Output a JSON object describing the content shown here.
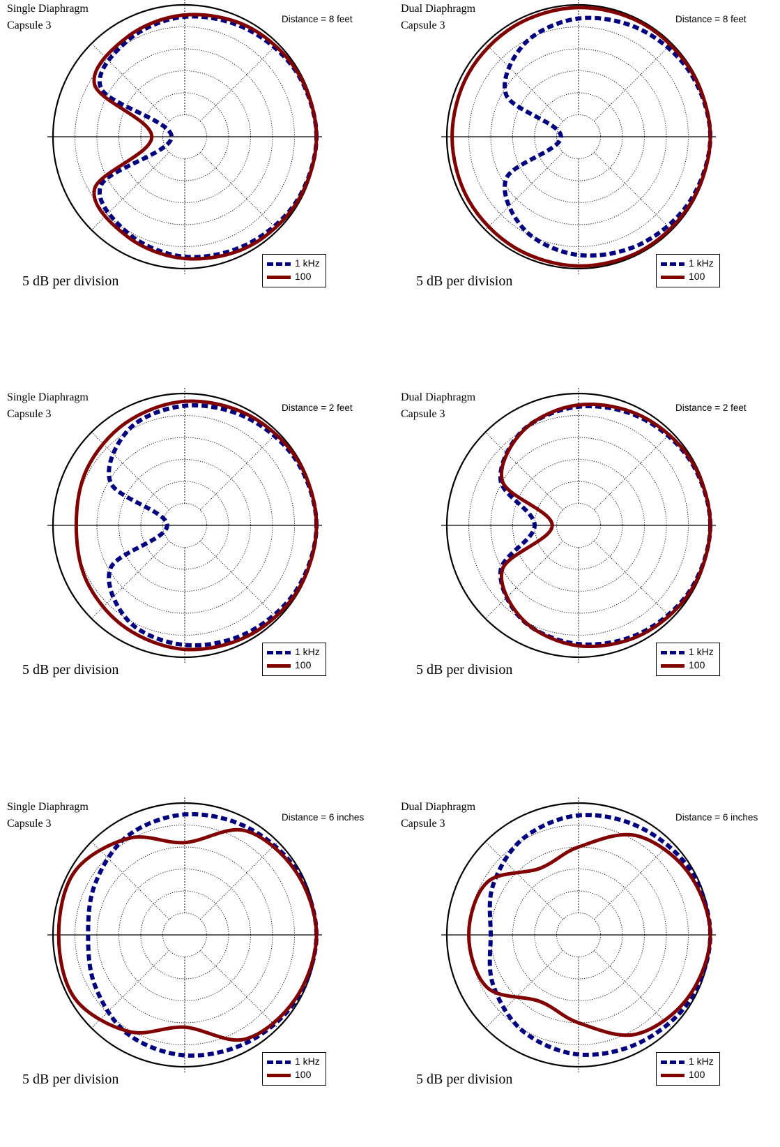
{
  "figure": {
    "scale_note": "5 dB per division",
    "legend": [
      "1 kHz",
      "100"
    ],
    "colors": {
      "1 kHz": "#00007f",
      "100": "#800000"
    }
  },
  "chart_data": [
    {
      "type": "polar",
      "title": [
        "Single Diaphragm",
        "Capsule 3"
      ],
      "annotation": "Distance = 8 feet",
      "grid": true,
      "legend_position": "bottom-right",
      "r_axis": {
        "divisions": 6,
        "units": "dB",
        "db_per_division": 5
      },
      "angle_deg": [
        0,
        30,
        60,
        90,
        120,
        150,
        180,
        210,
        240,
        270,
        300,
        330
      ],
      "series": [
        {
          "name": "1 kHz",
          "style": "dashed",
          "values": [
            0,
            -0.6,
            -1.7,
            -2.7,
            -4.5,
            -8,
            -27,
            -8,
            -4.5,
            -2.7,
            -1.7,
            -0.6
          ]
        },
        {
          "name": "100",
          "style": "solid",
          "values": [
            0,
            -0.4,
            -1.1,
            -2.3,
            -3.8,
            -6.3,
            -22.5,
            -6.3,
            -3.8,
            -2.3,
            -1.1,
            -0.4
          ]
        }
      ]
    },
    {
      "type": "polar",
      "title": [
        "Dual Diaphragm",
        "Capsule 3"
      ],
      "annotation": "Distance = 8 feet",
      "grid": true,
      "legend_position": "bottom-right",
      "r_axis": {
        "divisions": 6,
        "units": "dB",
        "db_per_division": 5
      },
      "angle_deg": [
        0,
        30,
        60,
        90,
        120,
        150,
        180,
        210,
        240,
        270,
        300,
        330
      ],
      "series": [
        {
          "name": "1 kHz",
          "style": "dashed",
          "values": [
            0,
            -0.7,
            -1.8,
            -3.1,
            -5.5,
            -11,
            -26,
            -11,
            -5.5,
            -3.1,
            -1.8,
            -0.7
          ]
        },
        {
          "name": "100",
          "style": "solid",
          "values": [
            0,
            -0.3,
            -0.4,
            -0.6,
            -0.9,
            -1.1,
            -1.2,
            -1.1,
            -0.9,
            -0.6,
            -0.4,
            -0.3
          ]
        }
      ]
    },
    {
      "type": "polar",
      "title": [
        "Single Diaphragm",
        "Capsule 3"
      ],
      "annotation": "Distance = 2 feet",
      "grid": true,
      "legend_position": "bottom-right",
      "r_axis": {
        "divisions": 6,
        "units": "dB",
        "db_per_division": 5
      },
      "angle_deg": [
        0,
        30,
        60,
        90,
        120,
        150,
        180,
        210,
        240,
        270,
        300,
        330
      ],
      "series": [
        {
          "name": "1 kHz",
          "style": "dashed",
          "values": [
            0,
            -0.6,
            -1.7,
            -2.8,
            -4.7,
            -10.5,
            -26,
            -10.5,
            -4.7,
            -2.8,
            -1.7,
            -0.6
          ]
        },
        {
          "name": "100",
          "style": "solid",
          "values": [
            0,
            -0.3,
            -1,
            -1.8,
            -3.1,
            -4.3,
            -5.3,
            -4.3,
            -3.1,
            -1.8,
            -1,
            -0.3
          ]
        }
      ]
    },
    {
      "type": "polar",
      "title": [
        "Dual Diaphragm",
        "Capsule 3"
      ],
      "annotation": "Distance = 2 feet",
      "grid": true,
      "legend_position": "bottom-right",
      "r_axis": {
        "divisions": 6,
        "units": "dB",
        "db_per_division": 5
      },
      "angle_deg": [
        0,
        30,
        60,
        90,
        120,
        150,
        180,
        210,
        240,
        270,
        300,
        330
      ],
      "series": [
        {
          "name": "1 kHz",
          "style": "dashed",
          "values": [
            0,
            -0.6,
            -1.7,
            -3,
            -4.9,
            -9.5,
            -20,
            -9.5,
            -4.9,
            -3,
            -1.7,
            -0.6
          ]
        },
        {
          "name": "100",
          "style": "solid",
          "values": [
            0,
            -0.4,
            -1.3,
            -2.6,
            -5,
            -10,
            -24,
            -10,
            -5,
            -2.6,
            -1.3,
            -0.4
          ]
        }
      ]
    },
    {
      "type": "polar",
      "title": [
        "Single Diaphragm",
        "Capsule 3"
      ],
      "annotation": "Distance = 6 inches",
      "grid": true,
      "legend_position": "bottom-right",
      "r_axis": {
        "divisions": 6,
        "units": "dB",
        "db_per_division": 5
      },
      "angle_deg": [
        0,
        30,
        60,
        90,
        120,
        150,
        180,
        210,
        240,
        270,
        300,
        330
      ],
      "series": [
        {
          "name": "1 kHz",
          "style": "dashed",
          "values": [
            0,
            -0.6,
            -1.7,
            -2.6,
            -4,
            -6.5,
            -8,
            -6.5,
            -4,
            -2.6,
            -1.7,
            -0.6
          ]
        },
        {
          "name": "100",
          "style": "solid",
          "values": [
            0,
            -0.9,
            -2.6,
            -9,
            -4.6,
            -1.1,
            -1.3,
            -1.1,
            -4.6,
            -9,
            -2.6,
            -0.9
          ]
        }
      ]
    },
    {
      "type": "polar",
      "title": [
        "Dual Diaphragm",
        "Capsule 3"
      ],
      "annotation": "Distance = 6 inches",
      "grid": true,
      "legend_position": "bottom-right",
      "r_axis": {
        "divisions": 6,
        "units": "dB",
        "db_per_division": 5
      },
      "angle_deg": [
        0,
        30,
        60,
        90,
        120,
        150,
        180,
        210,
        240,
        270,
        300,
        330
      ],
      "series": [
        {
          "name": "1 kHz",
          "style": "dashed",
          "values": [
            0,
            -0.6,
            -1.8,
            -2.8,
            -4.7,
            -7.5,
            -10,
            -7.5,
            -4.7,
            -2.8,
            -1.8,
            -0.6
          ]
        },
        {
          "name": "100",
          "style": "solid",
          "values": [
            0,
            -1.3,
            -3.9,
            -10,
            -12.5,
            -6,
            -5,
            -6,
            -12.5,
            -10,
            -3.9,
            -1.3
          ]
        }
      ]
    }
  ]
}
